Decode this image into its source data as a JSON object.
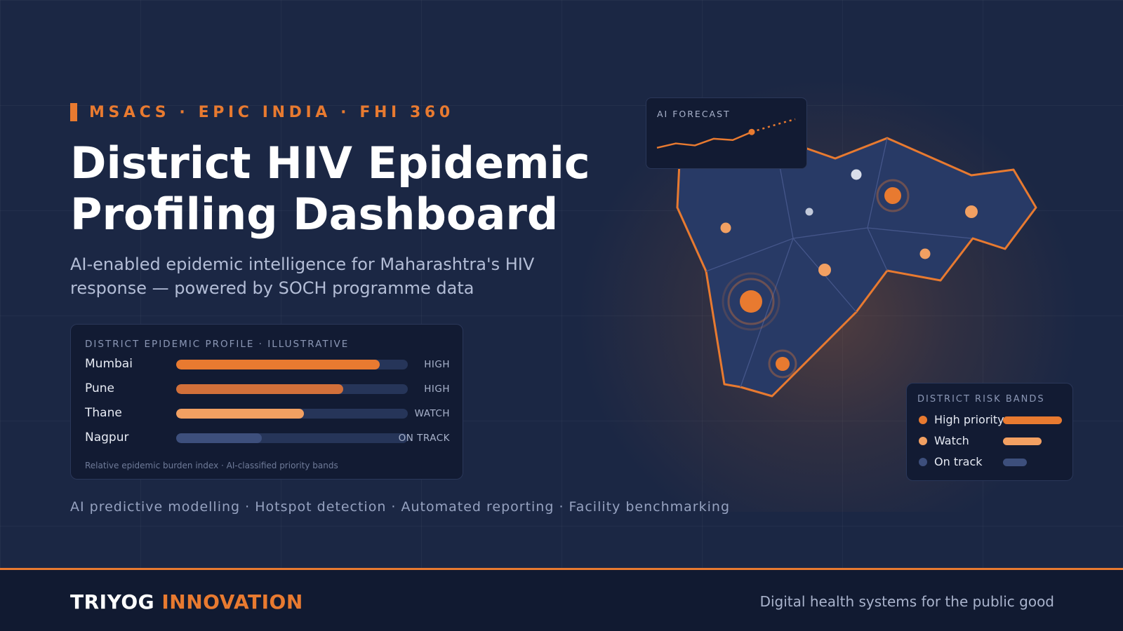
{
  "header": {
    "eyebrow": "MSACS · EPIC INDIA · FHI 360",
    "title_line1": "District HIV Epidemic",
    "title_line2": "Profiling Dashboard",
    "subtitle": "AI-enabled epidemic intelligence for Maharashtra's HIV response — powered by SOCH programme data"
  },
  "profile_card": {
    "label": "DISTRICT EPIDEMIC PROFILE · ILLUSTRATIVE",
    "footnote": "Relative epidemic burden index · AI-classified priority bands",
    "rows": [
      {
        "name": "Mumbai",
        "index": 0.88,
        "status": "HIGH",
        "color": "#e87a30"
      },
      {
        "name": "Pune",
        "index": 0.72,
        "status": "HIGH",
        "color": "#d2703a"
      },
      {
        "name": "Thane",
        "index": 0.55,
        "status": "WATCH",
        "color": "#f2a062"
      },
      {
        "name": "Nagpur",
        "index": 0.37,
        "status": "ON TRACK",
        "color": "#3d4f7c"
      }
    ]
  },
  "capabilities": "AI predictive modelling · Hotspot detection · Automated reporting · Facility benchmarking",
  "forecast": {
    "label": "AI FORECAST",
    "actual": [
      0.15,
      0.28,
      0.22,
      0.42,
      0.38,
      0.62
    ],
    "projected": [
      0.62,
      0.75,
      0.88,
      1.0
    ]
  },
  "legend": {
    "label": "DISTRICT RISK BANDS",
    "items": [
      {
        "label": "High priority",
        "color": "#e87a30",
        "level": 1.0
      },
      {
        "label": "Watch",
        "color": "#f2a062",
        "level": 0.66
      },
      {
        "label": "On track",
        "color": "#3d4f7c",
        "level": 0.4
      }
    ]
  },
  "footer": {
    "brand_primary": "TRIYOG",
    "brand_accent": "INNOVATION",
    "tagline": "Digital health systems for the public good"
  },
  "colors": {
    "accent": "#e87a30",
    "background": "#1b2744",
    "card": "#121b33",
    "map_fill": "#283a66"
  }
}
